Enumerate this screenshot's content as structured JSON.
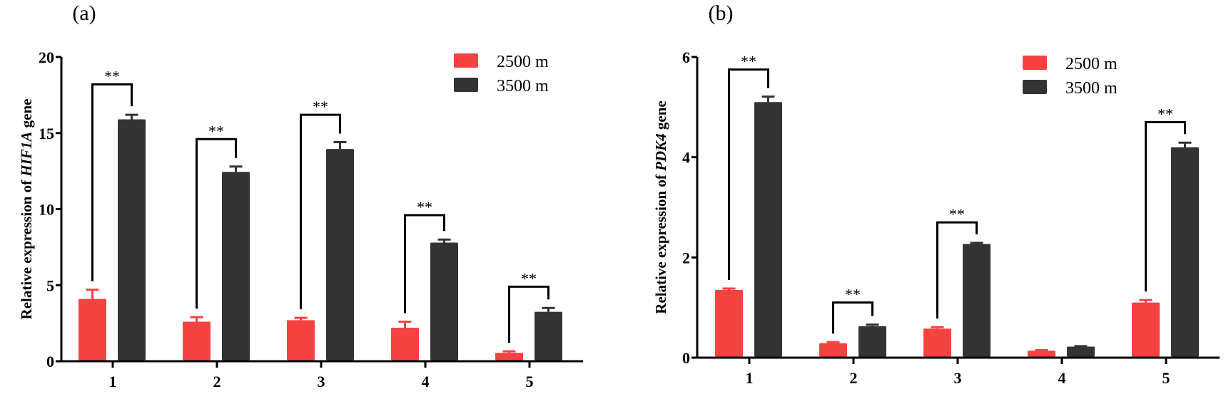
{
  "chart_data": [
    {
      "type": "bar",
      "panel_label": "(a)",
      "title": "",
      "xlabel": "",
      "ylabel": {
        "prefix": "Relative expression of ",
        "gene": "HIF1A",
        "suffix": " gene"
      },
      "ylim": [
        0,
        20
      ],
      "yticks": [
        0,
        5,
        10,
        15,
        20
      ],
      "categories": [
        "1",
        "2",
        "3",
        "4",
        "5"
      ],
      "grid": false,
      "legend_position": "top-right",
      "series": [
        {
          "name": "2500 m",
          "color": "#f74242",
          "values": [
            4.1,
            2.6,
            2.7,
            2.2,
            0.55
          ],
          "errors": [
            0.6,
            0.3,
            0.15,
            0.4,
            0.1
          ]
        },
        {
          "name": "3500 m",
          "color": "#333333",
          "values": [
            15.9,
            12.45,
            13.95,
            7.8,
            3.25
          ],
          "errors": [
            0.3,
            0.35,
            0.45,
            0.2,
            0.25
          ]
        }
      ],
      "annotations": [
        {
          "category": "1",
          "text": "**",
          "bracket_level": 18.2
        },
        {
          "category": "2",
          "text": "**",
          "bracket_level": 14.6
        },
        {
          "category": "3",
          "text": "**",
          "bracket_level": 16.2
        },
        {
          "category": "4",
          "text": "**",
          "bracket_level": 9.6
        },
        {
          "category": "5",
          "text": "**",
          "bracket_level": 4.9
        }
      ]
    },
    {
      "type": "bar",
      "panel_label": "(b)",
      "title": "",
      "xlabel": "",
      "ylabel": {
        "prefix": "Relative expression of ",
        "gene": "PDK4",
        "suffix": " gene"
      },
      "ylim": [
        0,
        6
      ],
      "yticks": [
        0,
        2,
        4,
        6
      ],
      "categories": [
        "1",
        "2",
        "3",
        "4",
        "5"
      ],
      "grid": false,
      "legend_position": "top-right",
      "series": [
        {
          "name": "2500 m",
          "color": "#f74242",
          "values": [
            1.35,
            0.29,
            0.58,
            0.14,
            1.1
          ],
          "errors": [
            0.03,
            0.02,
            0.03,
            0.01,
            0.05
          ]
        },
        {
          "name": "3500 m",
          "color": "#333333",
          "values": [
            5.1,
            0.63,
            2.27,
            0.22,
            4.2
          ],
          "errors": [
            0.11,
            0.03,
            0.02,
            0.01,
            0.09
          ]
        }
      ],
      "annotations": [
        {
          "category": "1",
          "text": "**",
          "bracket_level": 5.75
        },
        {
          "category": "2",
          "text": "**",
          "bracket_level": 1.1
        },
        {
          "category": "3",
          "text": "**",
          "bracket_level": 2.7
        },
        {
          "category": "5",
          "text": "**",
          "bracket_level": 4.7
        }
      ]
    }
  ]
}
